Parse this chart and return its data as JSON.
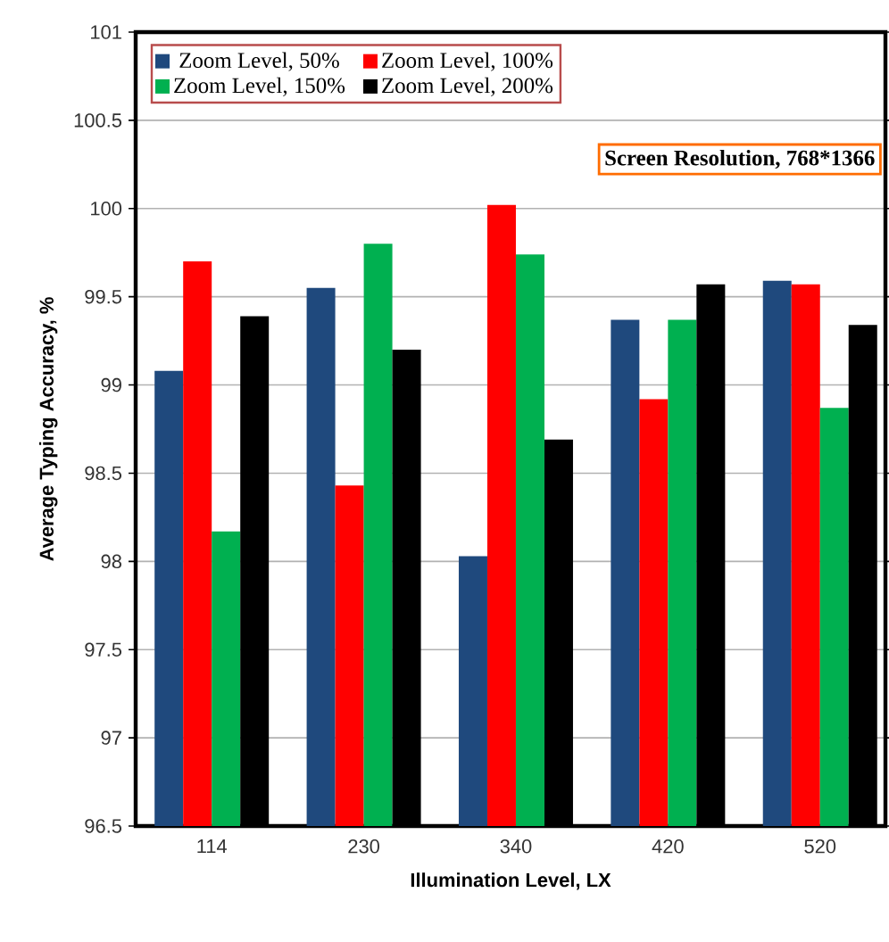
{
  "chart_data": {
    "type": "bar",
    "xlabel": "Illumination Level, LX",
    "ylabel": "Average Typing Accuracy, %",
    "categories": [
      "114",
      "230",
      "340",
      "420",
      "520"
    ],
    "series": [
      {
        "name": "Zoom Level, 50%",
        "color": "#1f497d",
        "values": [
          99.08,
          99.55,
          98.03,
          99.37,
          99.59
        ]
      },
      {
        "name": "Zoom Level, 100%",
        "color": "#ff0000",
        "values": [
          99.7,
          98.43,
          100.02,
          98.92,
          99.57
        ]
      },
      {
        "name": "Zoom Level, 150%",
        "color": "#00b050",
        "values": [
          98.17,
          99.8,
          99.74,
          99.37,
          98.87
        ]
      },
      {
        "name": "Zoom Level, 200%",
        "color": "#000000",
        "values": [
          99.39,
          99.2,
          98.69,
          99.57,
          99.34
        ]
      }
    ],
    "ylim": [
      96.5,
      101
    ],
    "yticks": [
      96.5,
      97,
      97.5,
      98,
      98.5,
      99,
      99.5,
      100,
      100.5,
      101
    ],
    "grid": "y",
    "legend": "top left",
    "annotations": [
      "Screen Resolution, 768*1366"
    ]
  }
}
